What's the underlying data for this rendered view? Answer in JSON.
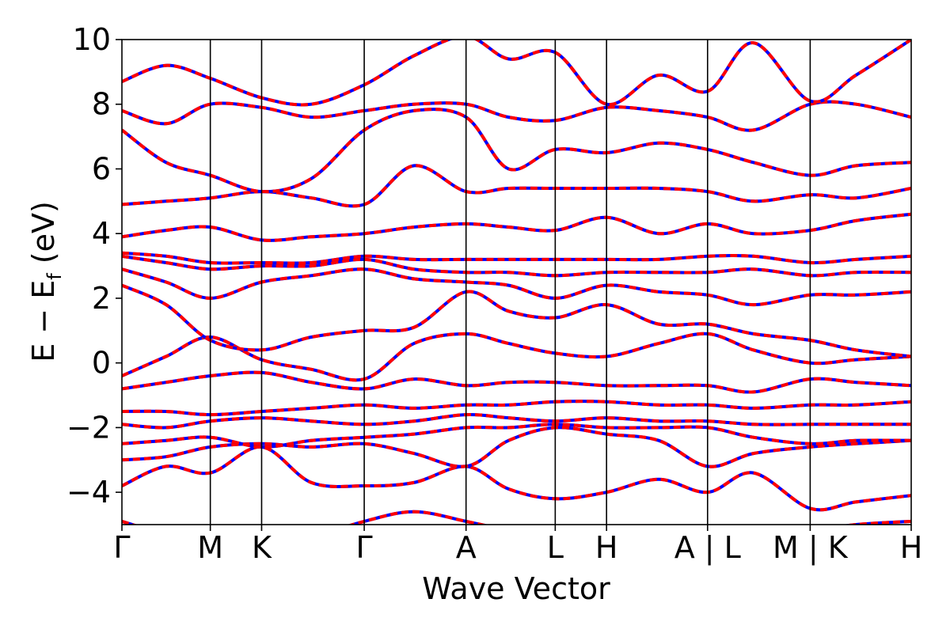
{
  "chart_data": {
    "type": "line",
    "xlabel": "Wave Vector",
    "ylabel_parts": {
      "main": "E − E",
      "subscript": "f",
      "unit": " (eV)"
    },
    "ylim": [
      -5,
      10
    ],
    "yticks": [
      -4,
      -2,
      0,
      2,
      4,
      6,
      8,
      10
    ],
    "ytick_labels": [
      "−4",
      "−2",
      "0",
      "2",
      "4",
      "6",
      "8",
      "10"
    ],
    "xlim": [
      0,
      1
    ],
    "kpoints": [
      {
        "label": "Γ",
        "x": 0.0
      },
      {
        "label": "M",
        "x": 0.112
      },
      {
        "label": "K",
        "x": 0.177
      },
      {
        "label": "Γ",
        "x": 0.307
      },
      {
        "label": "A",
        "x": 0.436
      },
      {
        "label": "L",
        "x": 0.549
      },
      {
        "label": "H",
        "x": 0.614
      },
      {
        "label": "A | L",
        "x": 0.742
      },
      {
        "label": "M | K",
        "x": 0.872
      },
      {
        "label": "H",
        "x": 1.0
      }
    ],
    "series_colors": {
      "primary": "#ff0000",
      "overlay": "#0000ff"
    },
    "bands": [
      {
        "x": [
          0.0,
          0.056,
          0.112,
          0.177,
          0.24,
          0.307,
          0.37,
          0.436,
          0.49,
          0.549,
          0.614,
          0.68,
          0.742,
          0.8,
          0.872,
          0.93,
          1.0
        ],
        "y": [
          -4.9,
          -5.3,
          -5.5,
          -5.8,
          -5.4,
          -4.9,
          -4.6,
          -4.9,
          -5.2,
          -5.6,
          -5.5,
          -5.3,
          -5.1,
          -5.4,
          -5.2,
          -5.0,
          -4.9
        ]
      },
      {
        "x": [
          0.0,
          0.056,
          0.112,
          0.177,
          0.24,
          0.307,
          0.37,
          0.436,
          0.49,
          0.549,
          0.614,
          0.68,
          0.742,
          0.8,
          0.872,
          0.93,
          1.0
        ],
        "y": [
          -3.8,
          -3.2,
          -3.4,
          -2.6,
          -3.7,
          -3.8,
          -3.7,
          -3.2,
          -3.9,
          -4.2,
          -4.0,
          -3.6,
          -4.0,
          -3.4,
          -4.5,
          -4.3,
          -4.1
        ]
      },
      {
        "x": [
          0.0,
          0.056,
          0.112,
          0.177,
          0.24,
          0.307,
          0.37,
          0.436,
          0.49,
          0.549,
          0.614,
          0.68,
          0.742,
          0.8,
          0.872,
          0.93,
          1.0
        ],
        "y": [
          -3.0,
          -2.9,
          -2.6,
          -2.5,
          -2.6,
          -2.5,
          -2.8,
          -3.2,
          -2.4,
          -2.0,
          -2.2,
          -2.4,
          -3.2,
          -2.8,
          -2.6,
          -2.5,
          -2.4
        ]
      },
      {
        "x": [
          0.0,
          0.056,
          0.112,
          0.177,
          0.24,
          0.307,
          0.37,
          0.436,
          0.49,
          0.549,
          0.614,
          0.68,
          0.742,
          0.8,
          0.872,
          0.93,
          1.0
        ],
        "y": [
          -2.5,
          -2.4,
          -2.3,
          -2.6,
          -2.4,
          -2.3,
          -2.2,
          -2.0,
          -2.0,
          -1.9,
          -2.0,
          -2.0,
          -2.0,
          -2.3,
          -2.5,
          -2.4,
          -2.4
        ]
      },
      {
        "x": [
          0.0,
          0.056,
          0.112,
          0.177,
          0.24,
          0.307,
          0.37,
          0.436,
          0.49,
          0.549,
          0.614,
          0.68,
          0.742,
          0.8,
          0.872,
          0.93,
          1.0
        ],
        "y": [
          -1.9,
          -2.0,
          -1.8,
          -1.7,
          -1.8,
          -1.9,
          -1.8,
          -1.6,
          -1.7,
          -1.8,
          -1.7,
          -1.8,
          -1.8,
          -1.9,
          -1.9,
          -1.9,
          -1.9
        ]
      },
      {
        "x": [
          0.0,
          0.056,
          0.112,
          0.177,
          0.24,
          0.307,
          0.37,
          0.436,
          0.49,
          0.549,
          0.614,
          0.68,
          0.742,
          0.8,
          0.872,
          0.93,
          1.0
        ],
        "y": [
          -1.5,
          -1.5,
          -1.6,
          -1.5,
          -1.4,
          -1.3,
          -1.4,
          -1.3,
          -1.3,
          -1.2,
          -1.2,
          -1.3,
          -1.3,
          -1.4,
          -1.3,
          -1.3,
          -1.2
        ]
      },
      {
        "x": [
          0.0,
          0.056,
          0.112,
          0.177,
          0.24,
          0.307,
          0.37,
          0.436,
          0.49,
          0.549,
          0.614,
          0.68,
          0.742,
          0.8,
          0.872,
          0.93,
          1.0
        ],
        "y": [
          -0.8,
          -0.6,
          -0.4,
          -0.3,
          -0.6,
          -0.8,
          -0.5,
          -0.7,
          -0.6,
          -0.6,
          -0.7,
          -0.7,
          -0.7,
          -0.9,
          -0.5,
          -0.6,
          -0.7
        ]
      },
      {
        "x": [
          0.0,
          0.056,
          0.112,
          0.177,
          0.24,
          0.307,
          0.37,
          0.436,
          0.49,
          0.549,
          0.614,
          0.68,
          0.742,
          0.8,
          0.872,
          0.93,
          1.0
        ],
        "y": [
          -0.4,
          0.2,
          0.8,
          0.1,
          -0.2,
          -0.5,
          0.6,
          0.9,
          0.6,
          0.3,
          0.2,
          0.6,
          0.9,
          0.4,
          0.0,
          0.1,
          0.2
        ]
      },
      {
        "x": [
          0.0,
          0.056,
          0.112,
          0.177,
          0.24,
          0.307,
          0.37,
          0.436,
          0.49,
          0.549,
          0.614,
          0.68,
          0.742,
          0.8,
          0.872,
          0.93,
          1.0
        ],
        "y": [
          2.4,
          1.8,
          0.7,
          0.4,
          0.8,
          1.0,
          1.1,
          2.2,
          1.6,
          1.4,
          1.8,
          1.2,
          1.2,
          0.9,
          0.7,
          0.4,
          0.2
        ]
      },
      {
        "x": [
          0.0,
          0.056,
          0.112,
          0.177,
          0.24,
          0.307,
          0.37,
          0.436,
          0.49,
          0.549,
          0.614,
          0.68,
          0.742,
          0.8,
          0.872,
          0.93,
          1.0
        ],
        "y": [
          2.9,
          2.5,
          2.0,
          2.5,
          2.7,
          2.9,
          2.6,
          2.5,
          2.4,
          2.0,
          2.4,
          2.2,
          2.1,
          1.8,
          2.1,
          2.1,
          2.2
        ]
      },
      {
        "x": [
          0.0,
          0.056,
          0.112,
          0.177,
          0.24,
          0.307,
          0.37,
          0.436,
          0.49,
          0.549,
          0.614,
          0.68,
          0.742,
          0.8,
          0.872,
          0.93,
          1.0
        ],
        "y": [
          3.3,
          3.1,
          2.9,
          3.0,
          3.0,
          3.2,
          2.9,
          2.8,
          2.8,
          2.7,
          2.8,
          2.8,
          2.8,
          2.9,
          2.7,
          2.8,
          2.8
        ]
      },
      {
        "x": [
          0.0,
          0.056,
          0.112,
          0.177,
          0.24,
          0.307,
          0.37,
          0.436,
          0.49,
          0.549,
          0.614,
          0.68,
          0.742,
          0.8,
          0.872,
          0.93,
          1.0
        ],
        "y": [
          3.4,
          3.3,
          3.1,
          3.1,
          3.1,
          3.3,
          3.2,
          3.2,
          3.2,
          3.2,
          3.2,
          3.2,
          3.3,
          3.3,
          3.1,
          3.2,
          3.3
        ]
      },
      {
        "x": [
          0.0,
          0.056,
          0.112,
          0.177,
          0.24,
          0.307,
          0.37,
          0.436,
          0.49,
          0.549,
          0.614,
          0.68,
          0.742,
          0.8,
          0.872,
          0.93,
          1.0
        ],
        "y": [
          3.9,
          4.1,
          4.2,
          3.8,
          3.9,
          4.0,
          4.2,
          4.3,
          4.2,
          4.1,
          4.5,
          4.0,
          4.3,
          4.0,
          4.1,
          4.4,
          4.6
        ]
      },
      {
        "x": [
          0.0,
          0.056,
          0.112,
          0.177,
          0.24,
          0.307,
          0.37,
          0.436,
          0.49,
          0.549,
          0.614,
          0.68,
          0.742,
          0.8,
          0.872,
          0.93,
          1.0
        ],
        "y": [
          4.9,
          5.0,
          5.1,
          5.3,
          5.1,
          4.9,
          6.1,
          5.3,
          5.4,
          5.4,
          5.4,
          5.4,
          5.3,
          5.0,
          5.2,
          5.1,
          5.4
        ]
      },
      {
        "x": [
          0.0,
          0.056,
          0.112,
          0.177,
          0.24,
          0.307,
          0.37,
          0.436,
          0.49,
          0.549,
          0.614,
          0.68,
          0.742,
          0.8,
          0.872,
          0.93,
          1.0
        ],
        "y": [
          7.2,
          6.2,
          5.8,
          5.3,
          5.7,
          7.2,
          7.8,
          7.6,
          6.0,
          6.6,
          6.5,
          6.8,
          6.6,
          6.2,
          5.8,
          6.1,
          6.2
        ]
      },
      {
        "x": [
          0.0,
          0.056,
          0.112,
          0.177,
          0.24,
          0.307,
          0.37,
          0.436,
          0.49,
          0.549,
          0.614,
          0.68,
          0.742,
          0.8,
          0.872,
          0.93,
          1.0
        ],
        "y": [
          7.8,
          7.4,
          8.0,
          7.9,
          7.6,
          7.8,
          8.0,
          8.0,
          7.6,
          7.5,
          7.9,
          7.8,
          7.6,
          7.2,
          8.0,
          8.0,
          7.6
        ]
      },
      {
        "x": [
          0.0,
          0.056,
          0.112,
          0.177,
          0.24,
          0.307,
          0.37,
          0.436,
          0.49,
          0.549,
          0.614,
          0.68,
          0.742,
          0.8,
          0.872,
          0.93,
          1.0
        ],
        "y": [
          8.7,
          9.2,
          8.8,
          8.2,
          8.0,
          8.6,
          9.5,
          10.1,
          9.4,
          9.6,
          8.0,
          8.9,
          8.4,
          9.9,
          8.1,
          8.9,
          10.0
        ]
      }
    ]
  }
}
